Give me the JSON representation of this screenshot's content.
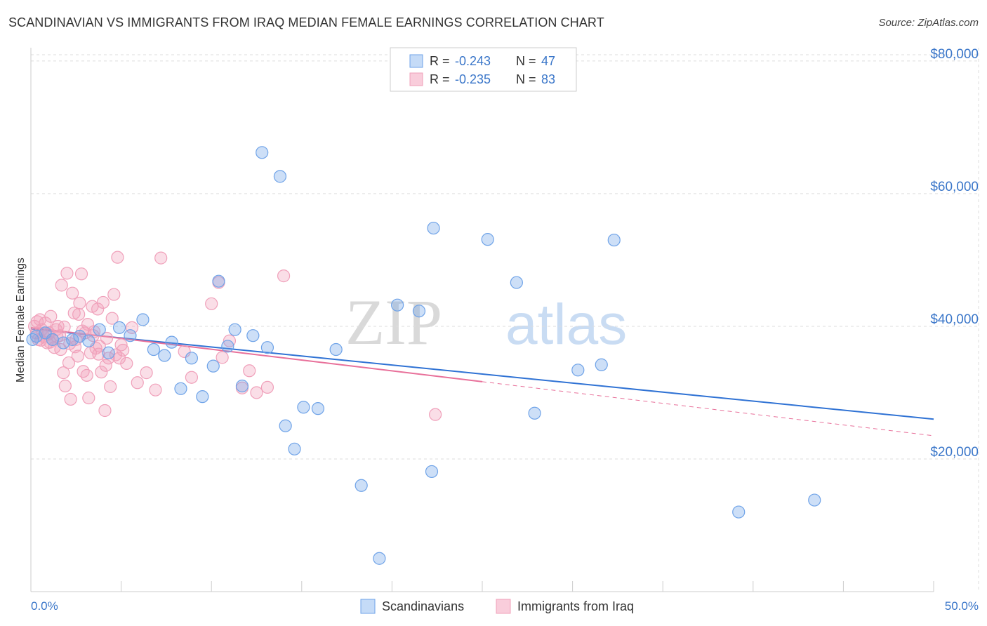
{
  "title": "SCANDINAVIAN VS IMMIGRANTS FROM IRAQ MEDIAN FEMALE EARNINGS CORRELATION CHART",
  "source": "Source: ZipAtlas.com",
  "watermark": {
    "zip": "ZIP",
    "atlas": "atlas"
  },
  "colors": {
    "blue": "#6fa3e8",
    "blue_line": "#2f72d4",
    "pink": "#f0a0ba",
    "pink_line": "#e8709a",
    "axis_label": "#3a76c9",
    "grid": "#dddddd"
  },
  "chart_data": {
    "type": "scatter",
    "title": "SCANDINAVIAN VS IMMIGRANTS FROM IRAQ MEDIAN FEMALE EARNINGS CORRELATION CHART",
    "ylabel": "Median Female Earnings",
    "xlim": [
      0,
      50
    ],
    "ylim": [
      0,
      82000
    ],
    "x_tick_labels": [
      "0.0%",
      "50.0%"
    ],
    "y_ticks": [
      {
        "value": 20000,
        "label": "$20,000"
      },
      {
        "value": 40000,
        "label": "$40,000"
      },
      {
        "value": 60000,
        "label": "$60,000"
      },
      {
        "value": 80000,
        "label": "$80,000"
      }
    ],
    "legend_stats": [
      {
        "r_label": "R = ",
        "r_value": "-0.243",
        "n_label": "N = ",
        "n_value": "47"
      },
      {
        "r_label": "R = ",
        "r_value": "-0.235",
        "n_label": "N = ",
        "n_value": "83"
      }
    ],
    "series": [
      {
        "name": "Scandinavians",
        "color": "#6fa3e8",
        "trend": {
          "x0": 0,
          "y0": 39600,
          "x1": 50,
          "y1": 26000,
          "solid_until": 50
        },
        "points": [
          [
            0.3,
            38500
          ],
          [
            0.8,
            39000
          ],
          [
            1.2,
            38000
          ],
          [
            1.8,
            37500
          ],
          [
            2.3,
            38000
          ],
          [
            2.7,
            38500
          ],
          [
            3.2,
            37800
          ],
          [
            3.8,
            39500
          ],
          [
            4.3,
            36000
          ],
          [
            4.9,
            39800
          ],
          [
            5.5,
            38600
          ],
          [
            6.2,
            41000
          ],
          [
            6.8,
            36500
          ],
          [
            7.4,
            35600
          ],
          [
            7.8,
            37600
          ],
          [
            8.3,
            30600
          ],
          [
            8.9,
            35200
          ],
          [
            9.5,
            29400
          ],
          [
            10.1,
            34000
          ],
          [
            10.4,
            46800
          ],
          [
            10.9,
            37000
          ],
          [
            11.3,
            39500
          ],
          [
            11.7,
            31000
          ],
          [
            12.3,
            38600
          ],
          [
            12.8,
            66200
          ],
          [
            13.1,
            36800
          ],
          [
            13.8,
            62600
          ],
          [
            14.1,
            25000
          ],
          [
            14.6,
            21500
          ],
          [
            15.1,
            27800
          ],
          [
            15.9,
            27600
          ],
          [
            16.9,
            36500
          ],
          [
            18.3,
            16000
          ],
          [
            19.3,
            5000
          ],
          [
            20.3,
            43200
          ],
          [
            21.5,
            42300
          ],
          [
            22.2,
            18100
          ],
          [
            22.3,
            54800
          ],
          [
            25.3,
            53100
          ],
          [
            26.9,
            46600
          ],
          [
            27.9,
            26900
          ],
          [
            30.3,
            33400
          ],
          [
            31.6,
            34200
          ],
          [
            32.3,
            53000
          ],
          [
            39.2,
            12000
          ],
          [
            43.4,
            13800
          ],
          [
            0.1,
            38000
          ]
        ]
      },
      {
        "name": "Immigrants from Iraq",
        "color": "#f0a0ba",
        "trend": {
          "x0": 0,
          "y0": 39800,
          "x1": 50,
          "y1": 23500,
          "solid_until": 25
        },
        "points": [
          [
            0.2,
            40000
          ],
          [
            0.3,
            39000
          ],
          [
            0.4,
            38000
          ],
          [
            0.5,
            41000
          ],
          [
            0.6,
            39500
          ],
          [
            0.7,
            38500
          ],
          [
            0.8,
            40500
          ],
          [
            0.9,
            37500
          ],
          [
            1.0,
            39000
          ],
          [
            1.1,
            41500
          ],
          [
            1.2,
            38000
          ],
          [
            1.3,
            36800
          ],
          [
            1.4,
            39500
          ],
          [
            1.5,
            40000
          ],
          [
            1.6,
            38600
          ],
          [
            1.7,
            46200
          ],
          [
            1.8,
            33000
          ],
          [
            1.9,
            31000
          ],
          [
            2.0,
            48000
          ],
          [
            2.1,
            34500
          ],
          [
            2.2,
            29000
          ],
          [
            2.3,
            45000
          ],
          [
            2.4,
            42000
          ],
          [
            2.5,
            38000
          ],
          [
            2.6,
            35500
          ],
          [
            2.7,
            43500
          ],
          [
            2.8,
            47900
          ],
          [
            2.9,
            33200
          ],
          [
            3.0,
            39000
          ],
          [
            3.1,
            32600
          ],
          [
            3.2,
            29200
          ],
          [
            3.3,
            36000
          ],
          [
            3.4,
            43000
          ],
          [
            3.5,
            39200
          ],
          [
            3.6,
            36700
          ],
          [
            3.7,
            42600
          ],
          [
            3.8,
            37000
          ],
          [
            3.9,
            33100
          ],
          [
            4.0,
            43600
          ],
          [
            4.1,
            27300
          ],
          [
            4.2,
            38200
          ],
          [
            4.3,
            35200
          ],
          [
            4.4,
            30900
          ],
          [
            4.5,
            41200
          ],
          [
            4.6,
            44800
          ],
          [
            4.7,
            35700
          ],
          [
            4.8,
            50400
          ],
          [
            4.9,
            35200
          ],
          [
            5.0,
            37200
          ],
          [
            5.1,
            36400
          ],
          [
            5.3,
            34400
          ],
          [
            5.6,
            39800
          ],
          [
            5.9,
            31500
          ],
          [
            6.4,
            33000
          ],
          [
            6.9,
            30400
          ],
          [
            7.2,
            50300
          ],
          [
            8.5,
            36200
          ],
          [
            8.9,
            32300
          ],
          [
            10.0,
            43400
          ],
          [
            10.4,
            46600
          ],
          [
            10.6,
            35300
          ],
          [
            11.0,
            37800
          ],
          [
            11.7,
            30700
          ],
          [
            12.1,
            33300
          ],
          [
            12.5,
            30000
          ],
          [
            13.1,
            30800
          ],
          [
            14.0,
            47600
          ],
          [
            22.4,
            26700
          ],
          [
            1.05,
            37600
          ],
          [
            0.55,
            37900
          ],
          [
            1.45,
            38400
          ],
          [
            2.45,
            36900
          ],
          [
            3.15,
            40300
          ],
          [
            0.95,
            38800
          ],
          [
            1.85,
            39900
          ],
          [
            2.15,
            37400
          ],
          [
            2.65,
            41800
          ],
          [
            3.45,
            38600
          ],
          [
            0.35,
            40700
          ],
          [
            1.65,
            36500
          ],
          [
            2.85,
            39300
          ],
          [
            3.75,
            35800
          ],
          [
            4.15,
            34100
          ]
        ]
      }
    ]
  },
  "legend": {
    "series1": "Scandinavians",
    "series2": "Immigrants from Iraq"
  }
}
